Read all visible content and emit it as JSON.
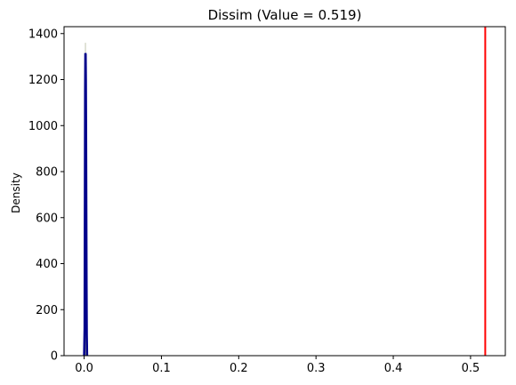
{
  "chart_data": {
    "type": "histogram-kde",
    "title": "Dissim (Value = 0.519)",
    "xlabel": "",
    "ylabel": "Density",
    "xlim": [
      -0.026,
      0.545
    ],
    "ylim": [
      0,
      1430
    ],
    "xticks": [
      0.0,
      0.1,
      0.2,
      0.3,
      0.4,
      0.5
    ],
    "xtick_labels": [
      "0.0",
      "0.1",
      "0.2",
      "0.3",
      "0.4",
      "0.5"
    ],
    "yticks": [
      0,
      200,
      400,
      600,
      800,
      1000,
      1200,
      1400
    ],
    "ytick_labels": [
      "0",
      "200",
      "400",
      "600",
      "800",
      "1000",
      "1200",
      "1400"
    ],
    "grid": false,
    "histogram": {
      "color": "#9aa07a",
      "bins": [
        {
          "x0": 0.0012,
          "x1": 0.0016,
          "density": 1360
        },
        {
          "x0": 0.0016,
          "x1": 0.002,
          "density": 1290
        },
        {
          "x0": 0.002,
          "x1": 0.0024,
          "density": 1180
        },
        {
          "x0": 0.0024,
          "x1": 0.0028,
          "density": 900
        },
        {
          "x0": 0.0028,
          "x1": 0.0032,
          "density": 450
        }
      ]
    },
    "kde": {
      "color": "#00008b",
      "points": [
        [
          0.0,
          0
        ],
        [
          0.0006,
          120
        ],
        [
          0.001,
          700
        ],
        [
          0.0013,
          1150
        ],
        [
          0.0016,
          1315
        ],
        [
          0.0019,
          1310
        ],
        [
          0.0022,
          1200
        ],
        [
          0.0025,
          950
        ],
        [
          0.0028,
          620
        ],
        [
          0.0031,
          300
        ],
        [
          0.0034,
          90
        ],
        [
          0.0038,
          0
        ]
      ]
    },
    "reference_line": {
      "x": 0.519,
      "color": "#ff0000"
    }
  }
}
